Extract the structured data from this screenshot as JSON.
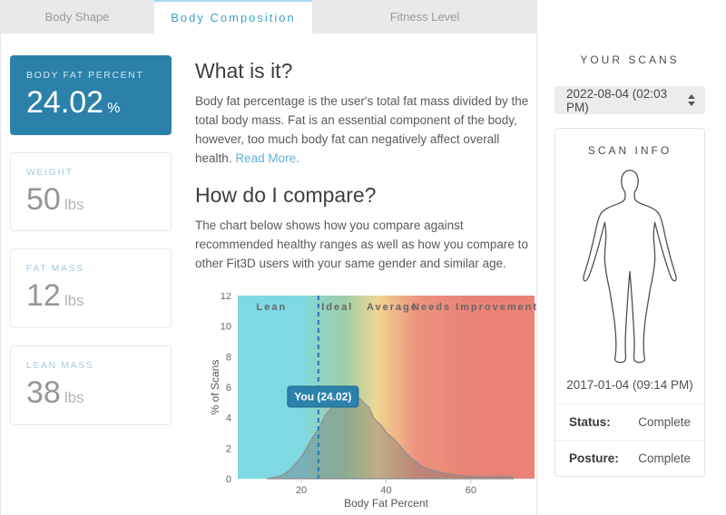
{
  "colors": {
    "accent": "#2b81aa",
    "accent_border": "#1e6990",
    "link": "#64b0da",
    "tab_active_text": "#3fa2cd",
    "stat_label_blue": "#a5cbe0"
  },
  "tabs": [
    {
      "label": "Body Shape",
      "active": false
    },
    {
      "label": "Body Composition",
      "active": true
    },
    {
      "label": "Fitness Level",
      "active": false
    }
  ],
  "stats": {
    "primary": {
      "label": "BODY FAT PERCENT",
      "value": "24.02",
      "unit": "%"
    },
    "others": [
      {
        "label": "WEIGHT",
        "value": "50",
        "unit": "lbs"
      },
      {
        "label": "FAT MASS",
        "value": "12",
        "unit": "lbs"
      },
      {
        "label": "LEAN MASS",
        "value": "38",
        "unit": "lbs"
      }
    ]
  },
  "content": {
    "what_heading": "What is it?",
    "what_text": "Body fat percentage is the user's total fat mass divided by the total body mass. Fat is an essential component of the body, however, too much body fat can negatively affect overall health.",
    "read_more": "Read More.",
    "compare_heading": "How do I compare?",
    "compare_text": "The chart below shows how you compare against recommended healthy ranges as well as how you compare to other Fit3D users with your same gender and similar age."
  },
  "chart_data": {
    "type": "area",
    "title": "",
    "xlabel": "Body Fat Percent",
    "ylabel": "% of Scans",
    "xlim": [
      5,
      75
    ],
    "ylim": [
      0,
      12
    ],
    "xticks": [
      20,
      40,
      60
    ],
    "yticks": [
      0,
      2,
      4,
      6,
      8,
      10,
      12
    ],
    "grid": false,
    "legend": false,
    "regions": [
      {
        "label": "Lean",
        "center": 13,
        "range": [
          5,
          23
        ],
        "color": "#7ed9e3"
      },
      {
        "label": "Ideal",
        "center": 28.5,
        "range": [
          23,
          33
        ],
        "color": "#9ccfa9"
      },
      {
        "label": "Average",
        "center": 41.5,
        "range": [
          33,
          40
        ],
        "color": "#f2d592"
      },
      {
        "label": "Needs Improvement",
        "center": 61,
        "range": [
          40,
          75
        ],
        "color": "#ea8375"
      }
    ],
    "gradient_stops": [
      [
        "#7ed9e3",
        0
      ],
      [
        "#7ed9e3",
        0.21
      ],
      [
        "#94d2c0",
        0.29
      ],
      [
        "#9ccfa9",
        0.36
      ],
      [
        "#f2d592",
        0.47
      ],
      [
        "#ed9480",
        0.6
      ],
      [
        "#ea8375",
        0.78
      ],
      [
        "#ea8375",
        1
      ]
    ],
    "marker": {
      "label": "You (24.02)",
      "x": 24.02
    },
    "series": [
      {
        "name": "distribution",
        "points": [
          [
            12,
            0.03
          ],
          [
            13,
            0.06
          ],
          [
            14,
            0.1
          ],
          [
            15,
            0.18
          ],
          [
            16,
            0.32
          ],
          [
            17,
            0.52
          ],
          [
            18,
            0.8
          ],
          [
            19,
            1.1
          ],
          [
            20,
            1.45
          ],
          [
            21,
            1.9
          ],
          [
            22,
            2.4
          ],
          [
            23,
            2.85
          ],
          [
            24,
            3.25
          ],
          [
            25,
            3.8
          ],
          [
            26,
            4.3
          ],
          [
            27,
            4.6
          ],
          [
            28,
            4.8
          ],
          [
            29,
            4.95
          ],
          [
            30,
            5.05
          ],
          [
            31,
            5.15
          ],
          [
            32,
            5.3
          ],
          [
            33,
            5.4
          ],
          [
            34,
            5.2
          ],
          [
            35,
            4.9
          ],
          [
            36,
            4.65
          ],
          [
            37,
            4.0
          ],
          [
            38,
            3.7
          ],
          [
            39,
            3.45
          ],
          [
            40,
            3.05
          ],
          [
            41,
            2.8
          ],
          [
            42,
            2.55
          ],
          [
            43,
            2.25
          ],
          [
            44,
            1.9
          ],
          [
            45,
            1.6
          ],
          [
            46,
            1.35
          ],
          [
            47,
            1.12
          ],
          [
            48,
            0.92
          ],
          [
            49,
            0.78
          ],
          [
            50,
            0.65
          ],
          [
            51,
            0.55
          ],
          [
            52,
            0.48
          ],
          [
            53,
            0.42
          ],
          [
            54,
            0.36
          ],
          [
            55,
            0.32
          ],
          [
            56,
            0.28
          ],
          [
            57,
            0.24
          ],
          [
            58,
            0.21
          ],
          [
            59,
            0.19
          ],
          [
            60,
            0.17
          ],
          [
            61,
            0.16
          ],
          [
            62,
            0.14
          ],
          [
            63,
            0.13
          ],
          [
            64,
            0.12
          ],
          [
            65,
            0.17
          ],
          [
            66,
            0.11
          ],
          [
            67,
            0.2
          ],
          [
            68,
            0.13
          ],
          [
            69,
            0.18
          ],
          [
            70,
            0.12
          ]
        ]
      }
    ]
  },
  "sidebar": {
    "your_scans_title": "YOUR SCANS",
    "scan_select_value": "2022-08-04 (02:03 PM)",
    "scan_info_title": "SCAN INFO",
    "scan_date": "2017-01-04 (09:14 PM)",
    "rows": [
      {
        "label": "Status:",
        "value": "Complete"
      },
      {
        "label": "Posture:",
        "value": "Complete"
      }
    ]
  }
}
